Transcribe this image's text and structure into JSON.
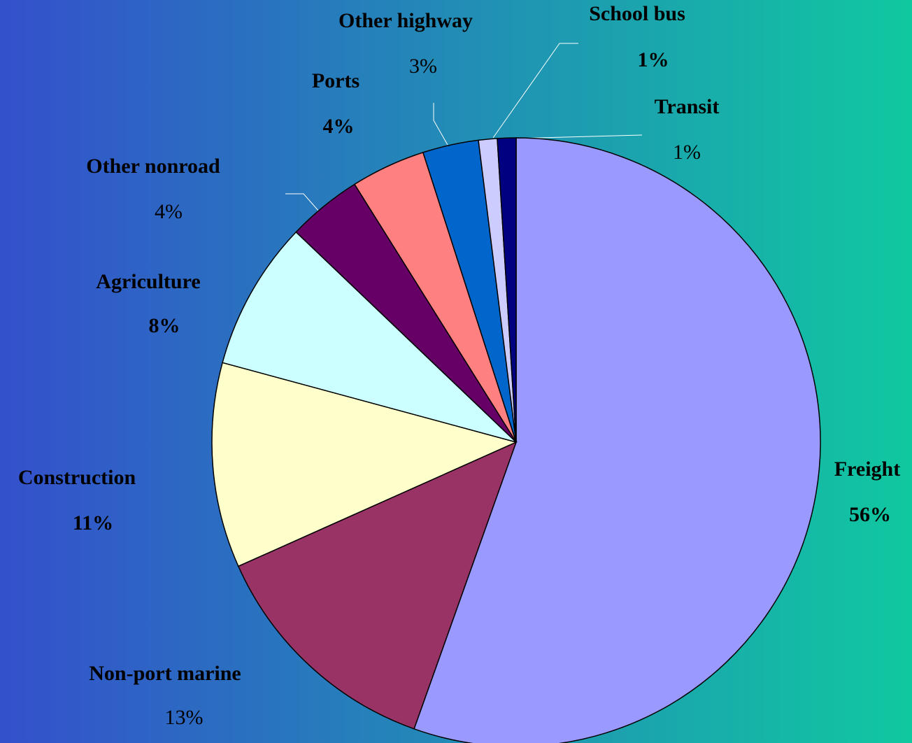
{
  "chart_data": {
    "type": "pie",
    "categories": [
      "Freight",
      "Non-port marine",
      "Construction",
      "Agriculture",
      "Other nonroad",
      "Ports",
      "Other highway",
      "School bus",
      "Transit"
    ],
    "values": [
      56,
      13,
      11,
      8,
      4,
      4,
      3,
      1,
      1
    ],
    "value_labels": [
      "56%",
      "13%",
      "11%",
      "8%",
      "4%",
      "4%",
      "3%",
      "1%",
      "1%"
    ],
    "colors": [
      "#9999ff",
      "#993366",
      "#ffffcc",
      "#ccffff",
      "#660066",
      "#ff8080",
      "#0066cc",
      "#ccccff",
      "#000080"
    ]
  }
}
